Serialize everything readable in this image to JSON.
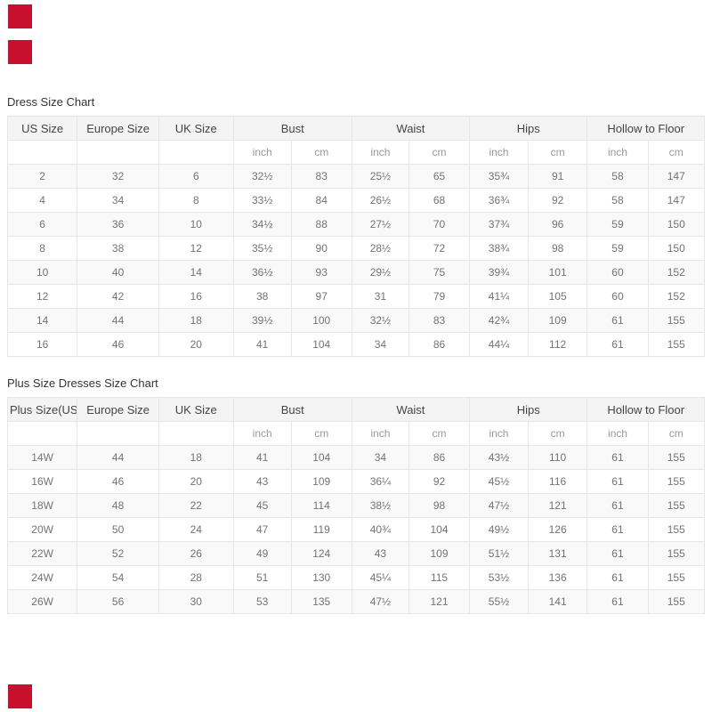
{
  "decor": {
    "swatch_color": "#c8102e"
  },
  "tables": [
    {
      "title": "Dress Size Chart",
      "group_headers": [
        {
          "label": "US Size",
          "span": 1
        },
        {
          "label": "Europe Size",
          "span": 1
        },
        {
          "label": "UK Size",
          "span": 1
        },
        {
          "label": "Bust",
          "span": 2
        },
        {
          "label": "Waist",
          "span": 2
        },
        {
          "label": "Hips",
          "span": 2
        },
        {
          "label": "Hollow to Floor",
          "span": 2
        }
      ],
      "unit_headers": [
        "",
        "",
        "",
        "inch",
        "cm",
        "inch",
        "cm",
        "inch",
        "cm",
        "inch",
        "cm"
      ],
      "rows": [
        [
          "2",
          "32",
          "6",
          "32½",
          "83",
          "25½",
          "65",
          "35¾",
          "91",
          "58",
          "147"
        ],
        [
          "4",
          "34",
          "8",
          "33½",
          "84",
          "26½",
          "68",
          "36¾",
          "92",
          "58",
          "147"
        ],
        [
          "6",
          "36",
          "10",
          "34½",
          "88",
          "27½",
          "70",
          "37¾",
          "96",
          "59",
          "150"
        ],
        [
          "8",
          "38",
          "12",
          "35½",
          "90",
          "28½",
          "72",
          "38¾",
          "98",
          "59",
          "150"
        ],
        [
          "10",
          "40",
          "14",
          "36½",
          "93",
          "29½",
          "75",
          "39¾",
          "101",
          "60",
          "152"
        ],
        [
          "12",
          "42",
          "16",
          "38",
          "97",
          "31",
          "79",
          "41¼",
          "105",
          "60",
          "152"
        ],
        [
          "14",
          "44",
          "18",
          "39½",
          "100",
          "32½",
          "83",
          "42¾",
          "109",
          "61",
          "155"
        ],
        [
          "16",
          "46",
          "20",
          "41",
          "104",
          "34",
          "86",
          "44¼",
          "112",
          "61",
          "155"
        ]
      ]
    },
    {
      "title": "Plus Size Dresses Size Chart",
      "group_headers": [
        {
          "label": "Plus Size(US)",
          "span": 1
        },
        {
          "label": "Europe Size",
          "span": 1
        },
        {
          "label": "UK Size",
          "span": 1
        },
        {
          "label": "Bust",
          "span": 2
        },
        {
          "label": "Waist",
          "span": 2
        },
        {
          "label": "Hips",
          "span": 2
        },
        {
          "label": "Hollow to Floor",
          "span": 2
        }
      ],
      "unit_headers": [
        "",
        "",
        "",
        "inch",
        "cm",
        "inch",
        "cm",
        "inch",
        "cm",
        "inch",
        "cm"
      ],
      "rows": [
        [
          "14W",
          "44",
          "18",
          "41",
          "104",
          "34",
          "86",
          "43½",
          "110",
          "61",
          "155"
        ],
        [
          "16W",
          "46",
          "20",
          "43",
          "109",
          "36¼",
          "92",
          "45½",
          "116",
          "61",
          "155"
        ],
        [
          "18W",
          "48",
          "22",
          "45",
          "114",
          "38½",
          "98",
          "47½",
          "121",
          "61",
          "155"
        ],
        [
          "20W",
          "50",
          "24",
          "47",
          "119",
          "40¾",
          "104",
          "49½",
          "126",
          "61",
          "155"
        ],
        [
          "22W",
          "52",
          "26",
          "49",
          "124",
          "43",
          "109",
          "51½",
          "131",
          "61",
          "155"
        ],
        [
          "24W",
          "54",
          "28",
          "51",
          "130",
          "45¼",
          "115",
          "53½",
          "136",
          "61",
          "155"
        ],
        [
          "26W",
          "56",
          "30",
          "53",
          "135",
          "47½",
          "121",
          "55½",
          "141",
          "61",
          "155"
        ]
      ]
    }
  ]
}
